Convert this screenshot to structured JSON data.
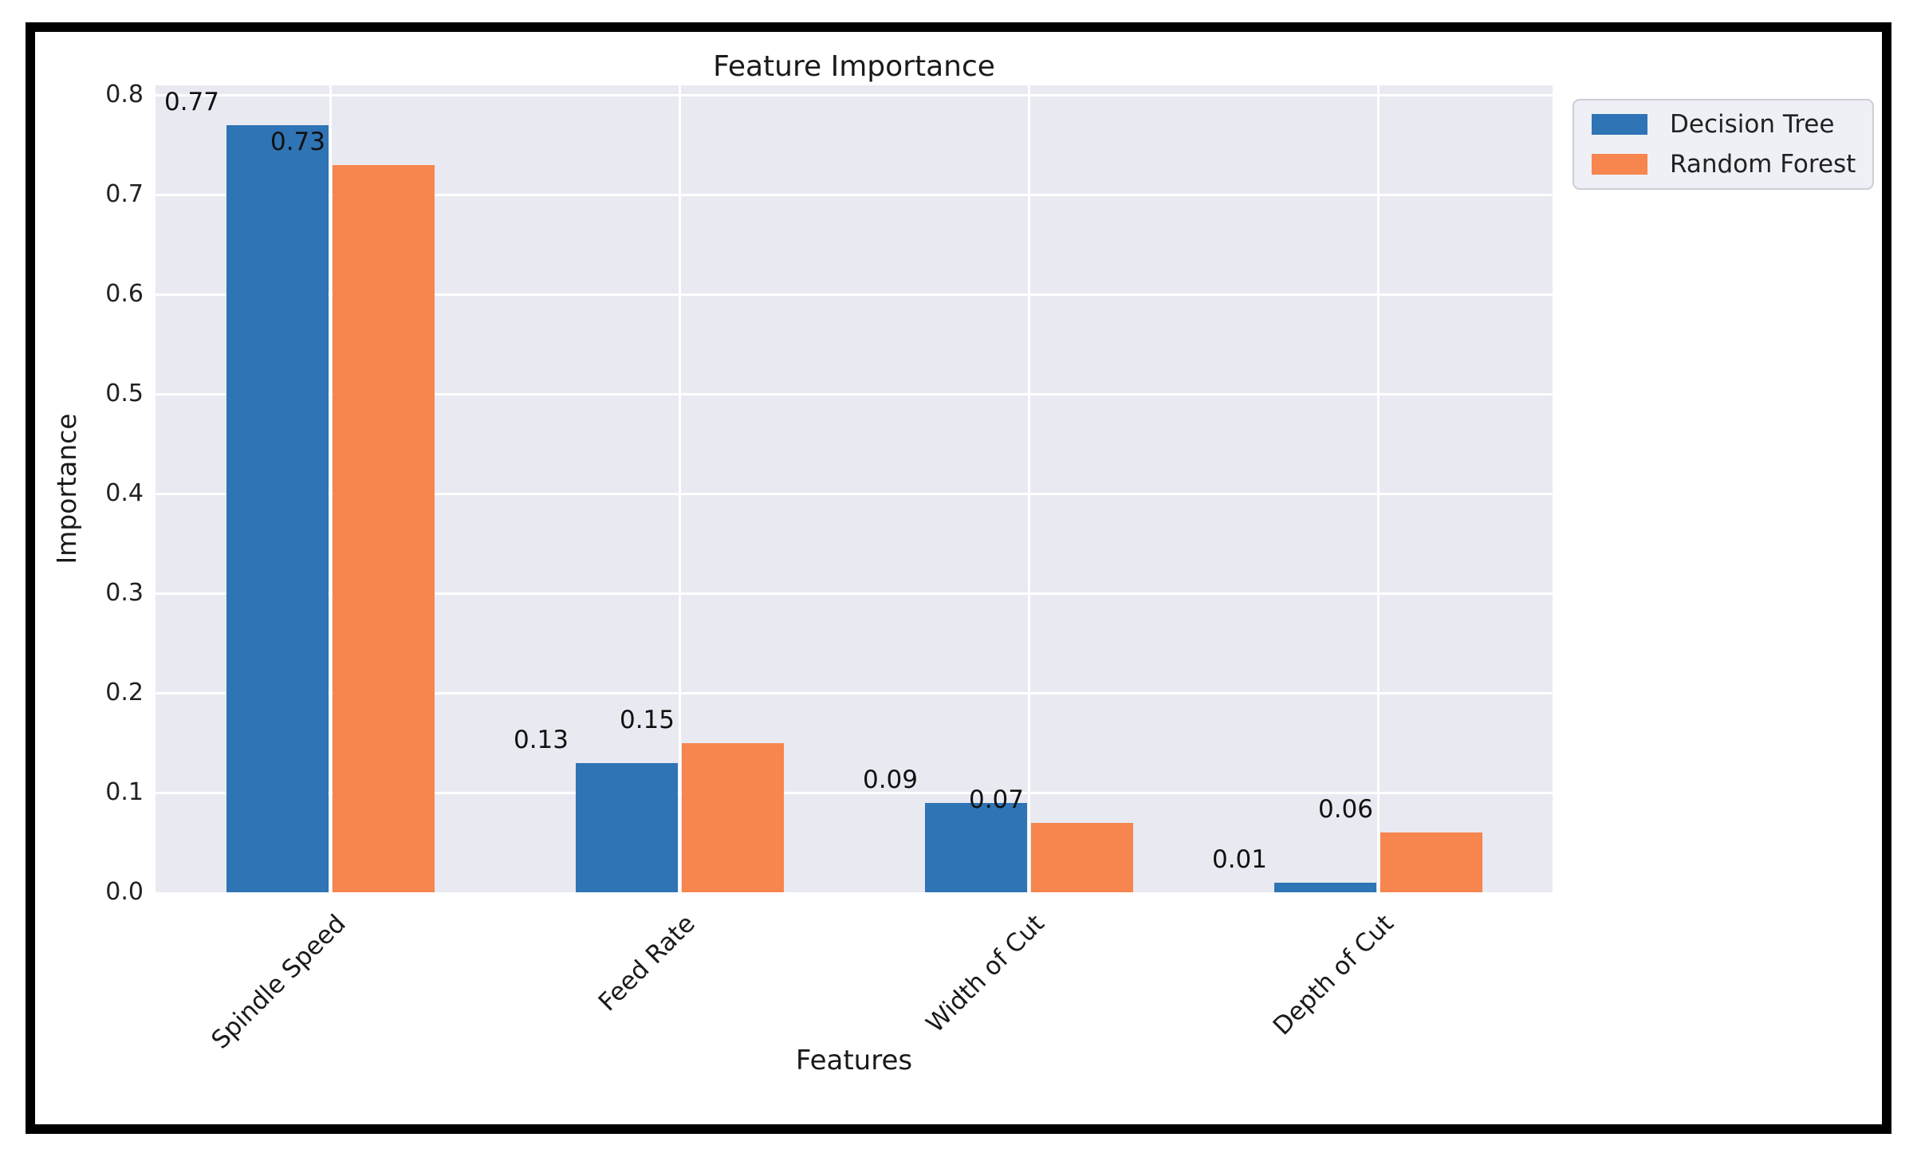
{
  "figure": {
    "frame_color": "#000000",
    "figure_background": "#ffffff"
  },
  "chart_data": {
    "type": "bar",
    "title": "Feature Importance",
    "xlabel": "Features",
    "ylabel": "Importance",
    "categories": [
      "Spindle Speed",
      "Feed Rate",
      "Width of Cut",
      "Depth of Cut"
    ],
    "series": [
      {
        "name": "Decision Tree",
        "color": "#2f74b5",
        "values": [
          0.77,
          0.13,
          0.09,
          0.01
        ],
        "labels": [
          "0.77",
          "0.13",
          "0.09",
          "0.01"
        ]
      },
      {
        "name": "Random Forest",
        "color": "#f6854e",
        "values": [
          0.73,
          0.15,
          0.07,
          0.06
        ],
        "labels": [
          "0.73",
          "0.15",
          "0.07",
          "0.06"
        ]
      }
    ],
    "ylim": [
      0,
      0.81
    ],
    "yticks": [
      "0.0",
      "0.1",
      "0.2",
      "0.3",
      "0.4",
      "0.5",
      "0.6",
      "0.7",
      "0.8"
    ],
    "grid": true,
    "grid_color": "#ffffff",
    "plot_background": "#e9eaf1",
    "legend_position": "upper right, outside plot"
  }
}
